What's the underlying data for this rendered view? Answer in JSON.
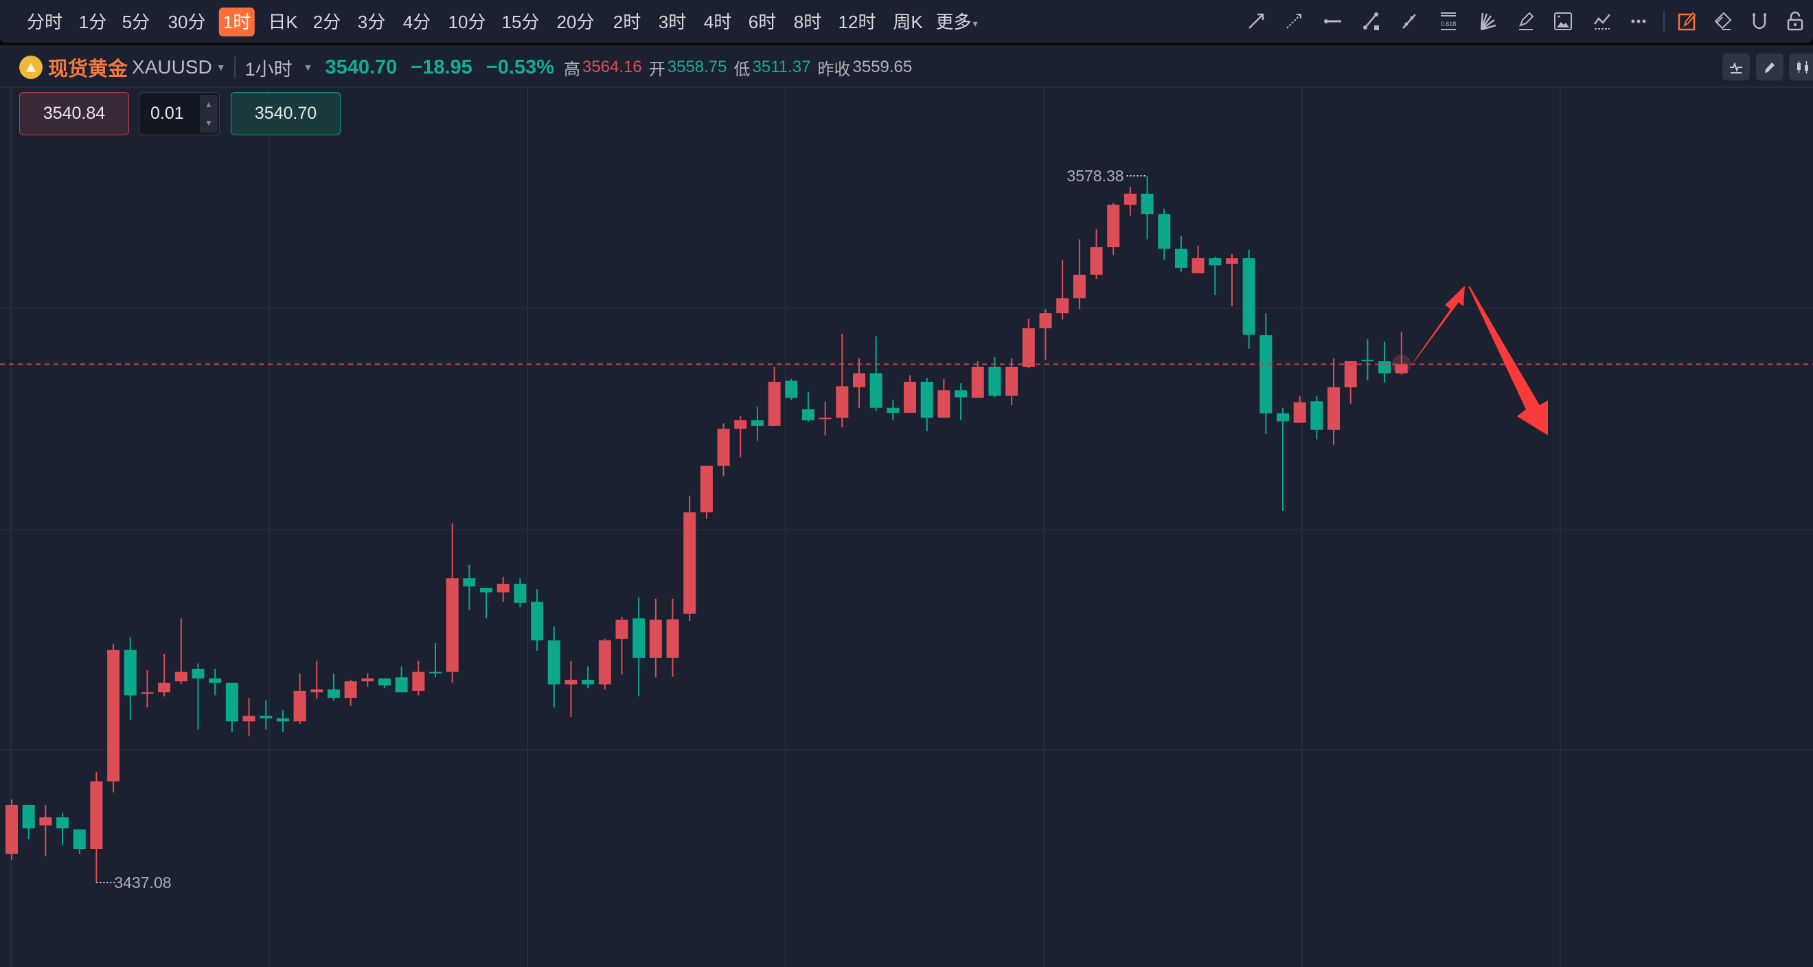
{
  "toolbar": {
    "timeframes": [
      "分时",
      "1分",
      "5分",
      "30分",
      "1时",
      "日K",
      "2分",
      "3分",
      "4分",
      "10分",
      "15分",
      "20分",
      "2时",
      "3时",
      "4时",
      "6时",
      "8时",
      "12时",
      "周K",
      "更多"
    ],
    "active_timeframe": "1时",
    "more_caret": "▾",
    "drawing_tools": [
      "trend-line-icon",
      "ray-icon",
      "horizontal-line-icon",
      "extended-line-icon",
      "segment-icon",
      "fibonacci-icon",
      "fan-icon",
      "highlighter-icon",
      "image-icon",
      "pattern-icon",
      "more-icon",
      "draw-mode-icon",
      "eraser-icon",
      "magnet-icon",
      "lock-icon"
    ],
    "fib_label": "0.618"
  },
  "header": {
    "name": "现货黄金",
    "symbol": "XAUUSD",
    "period": "1小时",
    "price": "3540.70",
    "change": "−18.95",
    "change_pct": "−0.53%",
    "high_label": "高",
    "high": "3564.16",
    "open_label": "开",
    "open": "3558.75",
    "low_label": "低",
    "low": "3511.37",
    "prev_close_label": "昨收",
    "prev_close": "3559.65"
  },
  "order": {
    "sell_price": "3540.84",
    "quantity": "0.01",
    "buy_price": "3540.70"
  },
  "colors": {
    "up": "#dd4d58",
    "down": "#0ca88b",
    "accent": "#ff6d38",
    "arrow": "#fb3b3b",
    "background": "#1b2130"
  },
  "chart_data": {
    "type": "candlestick",
    "interval": "1时",
    "current_price": 3540.7,
    "max_label": "3578.38",
    "min_label": "3437.08",
    "ohlc": [
      [
        3442.8,
        3453.7,
        3441.6,
        3452.6
      ],
      [
        3452.6,
        3452.6,
        3445.7,
        3447.9
      ],
      [
        3448.5,
        3452.6,
        3442.4,
        3450.1
      ],
      [
        3450.1,
        3451.0,
        3444.6,
        3447.9
      ],
      [
        3447.7,
        3447.7,
        3442.8,
        3443.8
      ],
      [
        3443.8,
        3459.2,
        3437.08,
        3457.3
      ],
      [
        3457.3,
        3484.8,
        3455.1,
        3483.6
      ],
      [
        3483.6,
        3486.1,
        3469.6,
        3474.5
      ],
      [
        3474.9,
        3479.5,
        3472.1,
        3475.1
      ],
      [
        3475.1,
        3482.8,
        3474.3,
        3477.0
      ],
      [
        3477.3,
        3489.9,
        3476.8,
        3479.2
      ],
      [
        3479.8,
        3480.9,
        3467.7,
        3477.9
      ],
      [
        3477.9,
        3479.8,
        3474.5,
        3477.0
      ],
      [
        3477.0,
        3477.0,
        3467.2,
        3469.3
      ],
      [
        3469.3,
        3474.0,
        3466.3,
        3470.4
      ],
      [
        3470.4,
        3473.5,
        3467.7,
        3469.9
      ],
      [
        3469.9,
        3471.5,
        3467.2,
        3469.3
      ],
      [
        3469.3,
        3478.9,
        3468.8,
        3475.4
      ],
      [
        3475.1,
        3481.4,
        3473.8,
        3475.7
      ],
      [
        3475.7,
        3478.9,
        3473.5,
        3474.0
      ],
      [
        3474.0,
        3477.6,
        3472.4,
        3477.3
      ],
      [
        3477.3,
        3478.9,
        3476.2,
        3477.9
      ],
      [
        3477.9,
        3477.9,
        3475.9,
        3476.5
      ],
      [
        3478.1,
        3480.3,
        3475.1,
        3475.1
      ],
      [
        3475.4,
        3481.4,
        3474.5,
        3479.2
      ],
      [
        3479.2,
        3485.0,
        3478.1,
        3478.9
      ],
      [
        3479.2,
        3508.9,
        3477.0,
        3497.9
      ],
      [
        3497.9,
        3500.6,
        3491.6,
        3496.3
      ],
      [
        3496.0,
        3496.0,
        3489.9,
        3495.1
      ],
      [
        3495.1,
        3498.2,
        3493.2,
        3496.8
      ],
      [
        3496.8,
        3497.9,
        3492.1,
        3493.0
      ],
      [
        3493.2,
        3495.7,
        3483.4,
        3485.5
      ],
      [
        3485.5,
        3488.3,
        3472.1,
        3476.7
      ],
      [
        3476.7,
        3481.4,
        3470.2,
        3477.6
      ],
      [
        3477.6,
        3480.3,
        3475.9,
        3476.7
      ],
      [
        3476.7,
        3485.8,
        3475.7,
        3485.5
      ],
      [
        3485.8,
        3490.2,
        3478.7,
        3489.6
      ],
      [
        3489.9,
        3494.1,
        3474.3,
        3482.0
      ],
      [
        3482.0,
        3493.8,
        3478.1,
        3489.6
      ],
      [
        3482.0,
        3493.8,
        3478.2,
        3489.7
      ],
      [
        3490.8,
        3514.4,
        3489.4,
        3511.1
      ],
      [
        3511.1,
        3520.4,
        3509.8,
        3520.4
      ],
      [
        3520.4,
        3528.9,
        3518.3,
        3527.8
      ],
      [
        3527.8,
        3530.3,
        3522.1,
        3529.5
      ],
      [
        3529.5,
        3532.2,
        3525.4,
        3528.4
      ],
      [
        3528.4,
        3540.2,
        3528.4,
        3537.2
      ],
      [
        3537.4,
        3537.8,
        3533.6,
        3534.0
      ],
      [
        3531.7,
        3535.2,
        3529.2,
        3529.5
      ],
      [
        3529.9,
        3533.3,
        3526.5,
        3530.0
      ],
      [
        3530.0,
        3546.8,
        3528.1,
        3536.3
      ],
      [
        3536.1,
        3541.9,
        3532.0,
        3538.9
      ],
      [
        3538.9,
        3546.3,
        3531.4,
        3532.0
      ],
      [
        3532.0,
        3533.6,
        3529.5,
        3531.0
      ],
      [
        3531.0,
        3538.5,
        3531.0,
        3537.2
      ],
      [
        3537.2,
        3538.0,
        3527.3,
        3530.0
      ],
      [
        3530.0,
        3537.8,
        3530.0,
        3535.5
      ],
      [
        3535.5,
        3536.9,
        3529.5,
        3534.1
      ],
      [
        3534.0,
        3541.3,
        3534.0,
        3540.2
      ],
      [
        3540.2,
        3542.1,
        3534.1,
        3534.4
      ],
      [
        3534.4,
        3541.9,
        3532.5,
        3540.2
      ],
      [
        3540.2,
        3549.8,
        3539.9,
        3547.9
      ],
      [
        3547.9,
        3551.7,
        3541.6,
        3550.9
      ],
      [
        3550.9,
        3561.6,
        3549.6,
        3553.9
      ],
      [
        3553.9,
        3565.7,
        3551.7,
        3558.6
      ],
      [
        3558.6,
        3567.7,
        3557.8,
        3564.1
      ],
      [
        3564.1,
        3572.9,
        3562.5,
        3572.6
      ],
      [
        3572.6,
        3576.2,
        3570.4,
        3574.8
      ],
      [
        3574.8,
        3578.38,
        3565.7,
        3570.7
      ],
      [
        3570.7,
        3571.8,
        3561.6,
        3563.8
      ],
      [
        3563.8,
        3566.3,
        3559.2,
        3560.0
      ],
      [
        3558.9,
        3564.4,
        3558.9,
        3561.9
      ],
      [
        3561.9,
        3562.2,
        3554.5,
        3560.5
      ],
      [
        3560.8,
        3562.7,
        3552.3,
        3561.9
      ],
      [
        3561.9,
        3563.6,
        3543.8,
        3546.6
      ],
      [
        3546.5,
        3550.9,
        3526.8,
        3530.9
      ],
      [
        3530.9,
        3532.0,
        3511.37,
        3529.3
      ],
      [
        3529.0,
        3534.4,
        3529.0,
        3533.1
      ],
      [
        3533.3,
        3534.4,
        3525.7,
        3527.6
      ],
      [
        3527.6,
        3541.9,
        3524.6,
        3536.1
      ],
      [
        3536.1,
        3541.3,
        3532.8,
        3541.3
      ],
      [
        3541.6,
        3545.7,
        3537.5,
        3541.5
      ],
      [
        3541.3,
        3545.2,
        3537.0,
        3538.9
      ],
      [
        3538.9,
        3547.1,
        3538.6,
        3540.7
      ]
    ],
    "grid": true,
    "annotations": [
      "arrow-up",
      "arrow-down"
    ]
  }
}
